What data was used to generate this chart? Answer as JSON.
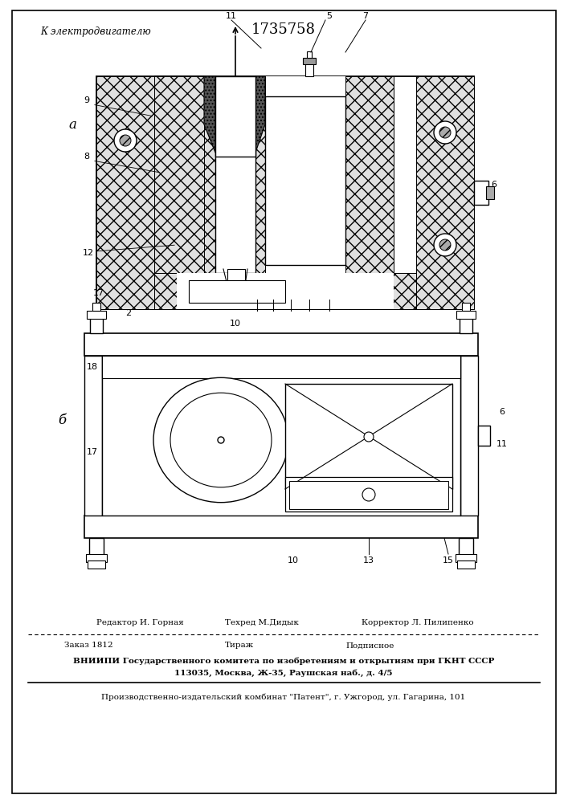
{
  "patent_number": "1735758",
  "title_arrow": "К электродвигателю",
  "label_a": "а",
  "label_b": "б",
  "footer_line1": "Редактор И. Горная     Техред М.Дидык       Корректор Л. Пилипенко",
  "footer_line2a": "Заказ 1812",
  "footer_line2b": "Тираж",
  "footer_line2c": "Подписное",
  "footer_line3": "ВНИИПИ Государственного комитета по изобретениям и открытиям при ГКНТ СССР",
  "footer_line4": "113035, Москва, Ж-35, Раушская наб., д. 4/5",
  "footer_line5": "Производственно-издательский комбинат \"Патент\", г. Ужгород, ул. Гагарина, 101"
}
